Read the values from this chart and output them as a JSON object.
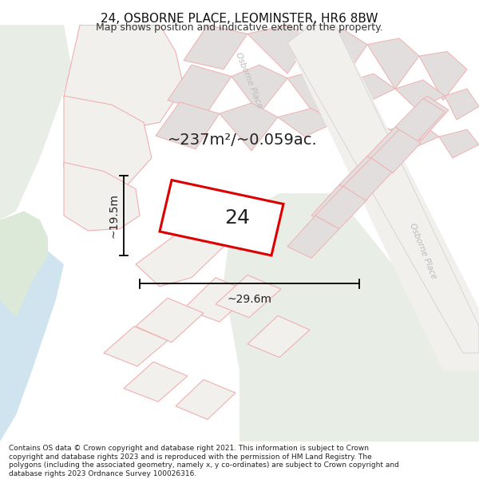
{
  "title": "24, OSBORNE PLACE, LEOMINSTER, HR6 8BW",
  "subtitle": "Map shows position and indicative extent of the property.",
  "footer": "Contains OS data © Crown copyright and database right 2021. This information is subject to Crown copyright and database rights 2023 and is reproduced with the permission of HM Land Registry. The polygons (including the associated geometry, namely x, y co-ordinates) are subject to Crown copyright and database rights 2023 Ordnance Survey 100026316.",
  "area_label": "~237m²/~0.059ac.",
  "width_label": "~29.6m",
  "height_label": "~19.5m",
  "house_number": "24",
  "map_bg": "#f2f0ed",
  "plot_color": "#dd0000",
  "plot_fill": "#ffffff",
  "block_color": "#e2dedd",
  "block_edge": "#f0b0b0",
  "green_light": "#e8ede6",
  "green_dark": "#dce8d8",
  "water_color": "#d0e4ef",
  "road_label_color": "#bbbbbb",
  "title_fontsize": 11,
  "subtitle_fontsize": 9,
  "footer_fontsize": 6.5,
  "area_fontsize": 14,
  "measure_fontsize": 10,
  "number_fontsize": 18
}
